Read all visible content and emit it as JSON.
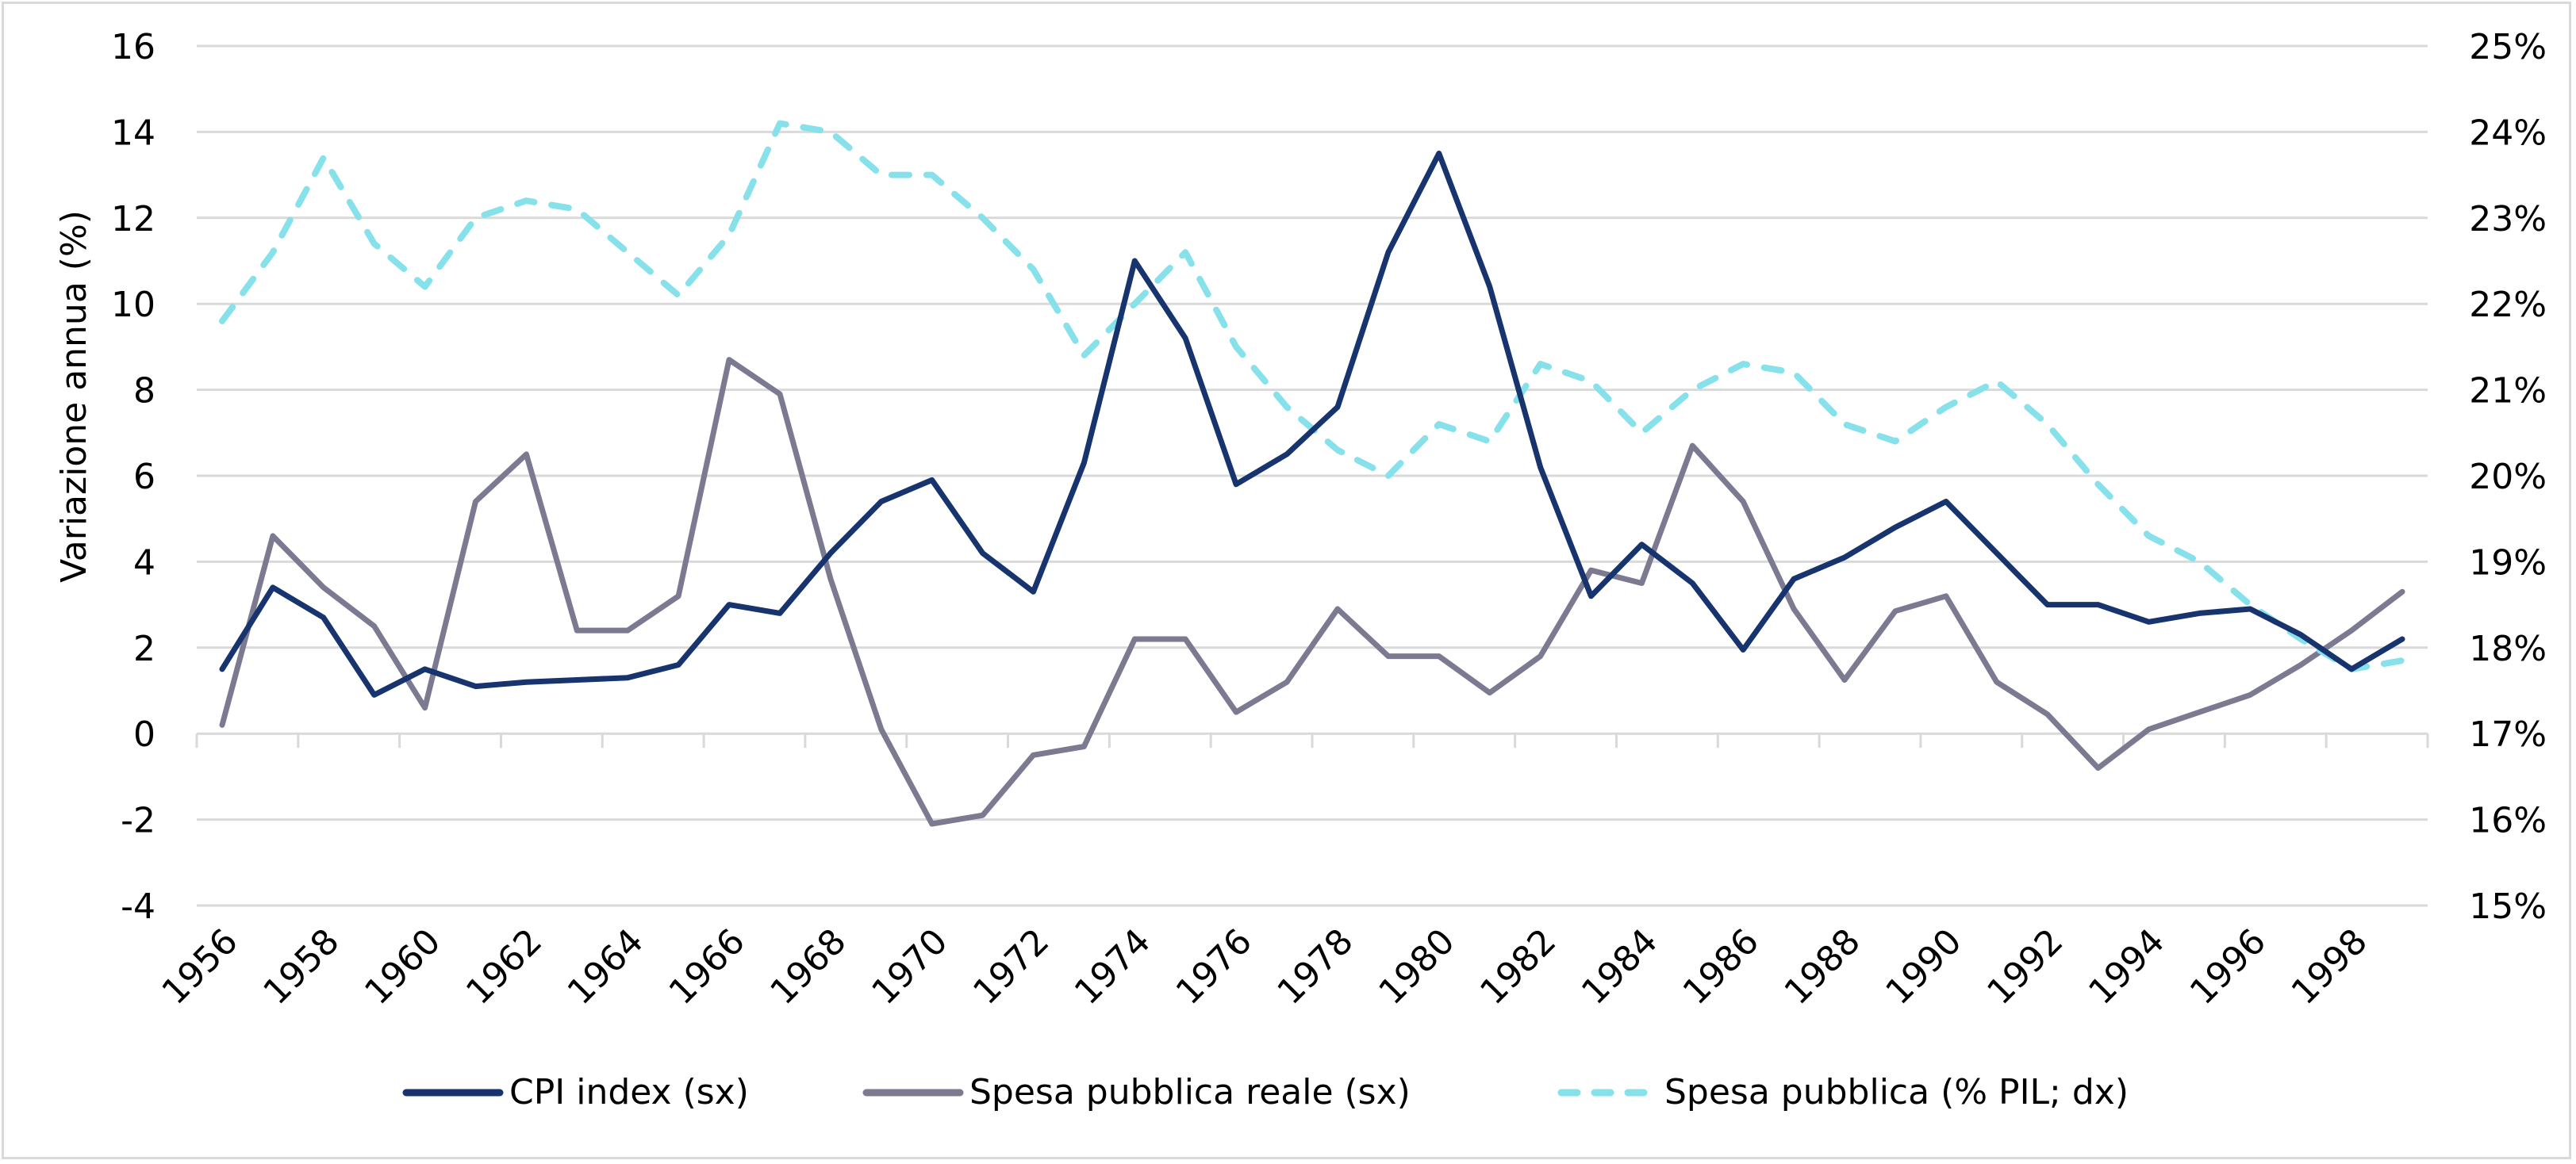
{
  "chart_data": {
    "type": "line",
    "title": "",
    "x": [
      1956,
      1957,
      1958,
      1959,
      1960,
      1961,
      1962,
      1963,
      1964,
      1965,
      1966,
      1967,
      1968,
      1969,
      1970,
      1971,
      1972,
      1973,
      1974,
      1975,
      1976,
      1977,
      1978,
      1979,
      1980,
      1981,
      1982,
      1983,
      1984,
      1985,
      1986,
      1987,
      1988,
      1989,
      1990,
      1991,
      1992,
      1993,
      1994,
      1995,
      1996,
      1997,
      1998,
      1999
    ],
    "x_tick_labels": [
      "1956",
      "1958",
      "1960",
      "1962",
      "1964",
      "1966",
      "1968",
      "1970",
      "1972",
      "1974",
      "1976",
      "1978",
      "1980",
      "1982",
      "1984",
      "1986",
      "1988",
      "1990",
      "1992",
      "1994",
      "1996",
      "1998"
    ],
    "ylabel": "Variazione annua (%)",
    "ylim": [
      -4,
      16
    ],
    "y_ticks": [
      "-4",
      "-2",
      "0",
      "2",
      "4",
      "6",
      "8",
      "10",
      "12",
      "14",
      "16"
    ],
    "y2lim": [
      15,
      25
    ],
    "y2_ticks": [
      "15%",
      "16%",
      "17%",
      "18%",
      "19%",
      "20%",
      "21%",
      "22%",
      "23%",
      "24%",
      "25%"
    ],
    "grid": true,
    "legend_position": "bottom",
    "series": [
      {
        "name": "CPI index (sx)",
        "axis": "left",
        "color": "#17346f",
        "style": "solid",
        "values": [
          1.5,
          3.4,
          2.7,
          0.9,
          1.5,
          1.1,
          1.2,
          1.25,
          1.3,
          1.6,
          3.0,
          2.8,
          4.2,
          5.4,
          5.9,
          4.2,
          3.3,
          6.3,
          11.0,
          9.2,
          5.8,
          6.5,
          7.6,
          11.2,
          13.5,
          10.4,
          6.2,
          3.2,
          4.4,
          3.5,
          1.95,
          3.6,
          4.1,
          4.8,
          5.4,
          4.2,
          3.0,
          3.0,
          2.6,
          2.8,
          2.9,
          2.3,
          1.5,
          2.2
        ]
      },
      {
        "name": "Spesa pubblica reale (sx)",
        "axis": "left",
        "color": "#7b7a91",
        "style": "solid",
        "values": [
          0.2,
          4.6,
          3.4,
          2.5,
          0.6,
          5.4,
          6.5,
          2.4,
          2.4,
          3.2,
          8.7,
          7.9,
          3.6,
          0.1,
          -2.1,
          -1.9,
          -0.5,
          -0.3,
          2.2,
          2.2,
          0.5,
          1.2,
          2.9,
          1.8,
          1.8,
          0.95,
          1.8,
          3.8,
          3.5,
          6.7,
          5.4,
          2.9,
          1.25,
          2.85,
          3.2,
          1.2,
          0.45,
          -0.8,
          0.1,
          0.5,
          0.9,
          1.6,
          2.4,
          3.3
        ]
      },
      {
        "name": "Spesa pubblica (% PIL; dx)",
        "axis": "right",
        "color": "#86e1ea",
        "style": "dashed",
        "values": [
          21.8,
          22.6,
          23.7,
          22.7,
          22.2,
          23.0,
          23.2,
          23.1,
          22.6,
          22.1,
          22.8,
          24.1,
          24.0,
          23.5,
          23.5,
          23.0,
          22.4,
          21.4,
          22.0,
          22.6,
          21.5,
          20.8,
          20.3,
          20.0,
          20.6,
          20.4,
          21.3,
          21.1,
          20.5,
          21.0,
          21.3,
          21.2,
          20.6,
          20.4,
          20.8,
          21.1,
          20.6,
          19.9,
          19.3,
          19.0,
          18.5,
          18.1,
          17.75,
          17.85
        ]
      }
    ]
  }
}
